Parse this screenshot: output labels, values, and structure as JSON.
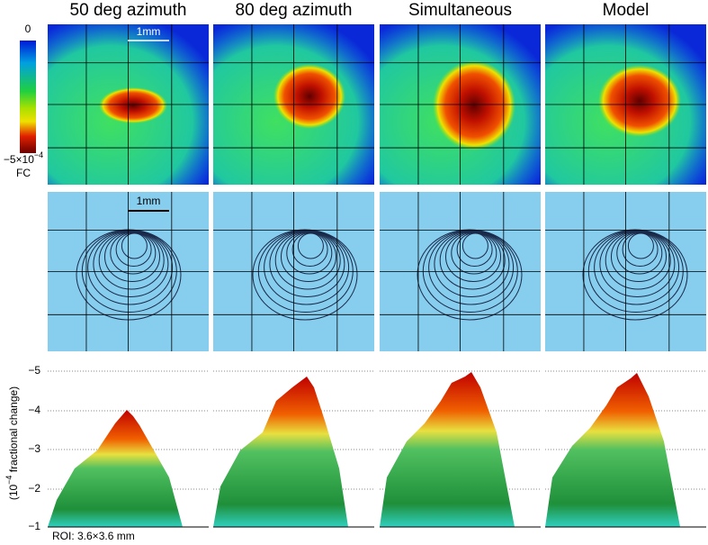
{
  "columns": [
    "50 deg azimuth",
    "80 deg azimuth",
    "Simultaneous",
    "Model"
  ],
  "colorbar": {
    "top": "0",
    "bottom_base": "−5×10",
    "bottom_exp": "−4",
    "unit": "FC"
  },
  "scale_bar": {
    "top_label": "1mm",
    "middle_label": "1mm"
  },
  "surface_axis": {
    "label_prefix": "(10",
    "label_exp": "−4",
    "label_suffix": " fractional change)",
    "ticks": [
      "−5",
      "−4",
      "−3",
      "−2",
      "−1"
    ]
  },
  "roi": "ROI: 3.6×3.6 mm"
}
